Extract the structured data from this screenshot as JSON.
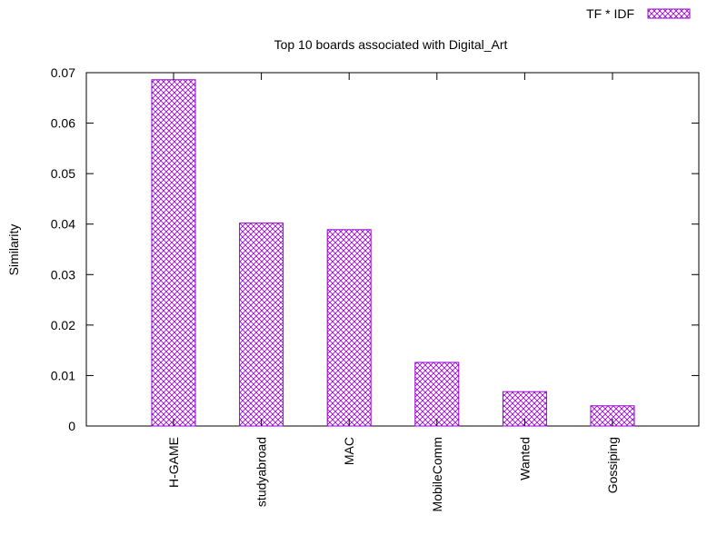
{
  "chart_data": {
    "type": "bar",
    "title": "Top 10 boards associated with Digital_Art",
    "xlabel": "",
    "ylabel": "Similarity",
    "ylim": [
      0,
      0.07
    ],
    "yticks": [
      "0",
      "0.01",
      "0.02",
      "0.03",
      "0.04",
      "0.05",
      "0.06",
      "0.07"
    ],
    "categories": [
      "H-GAME",
      "studyabroad",
      "MAC",
      "MobileComm",
      "Wanted",
      "Gossiping"
    ],
    "series": [
      {
        "name": "TF * IDF",
        "values": [
          0.0686,
          0.0402,
          0.0389,
          0.0126,
          0.0068,
          0.004
        ]
      }
    ],
    "grid": false,
    "legend_position": "top-right",
    "colors": {
      "bar_stroke": "#9400d3",
      "axis": "#000000"
    }
  }
}
